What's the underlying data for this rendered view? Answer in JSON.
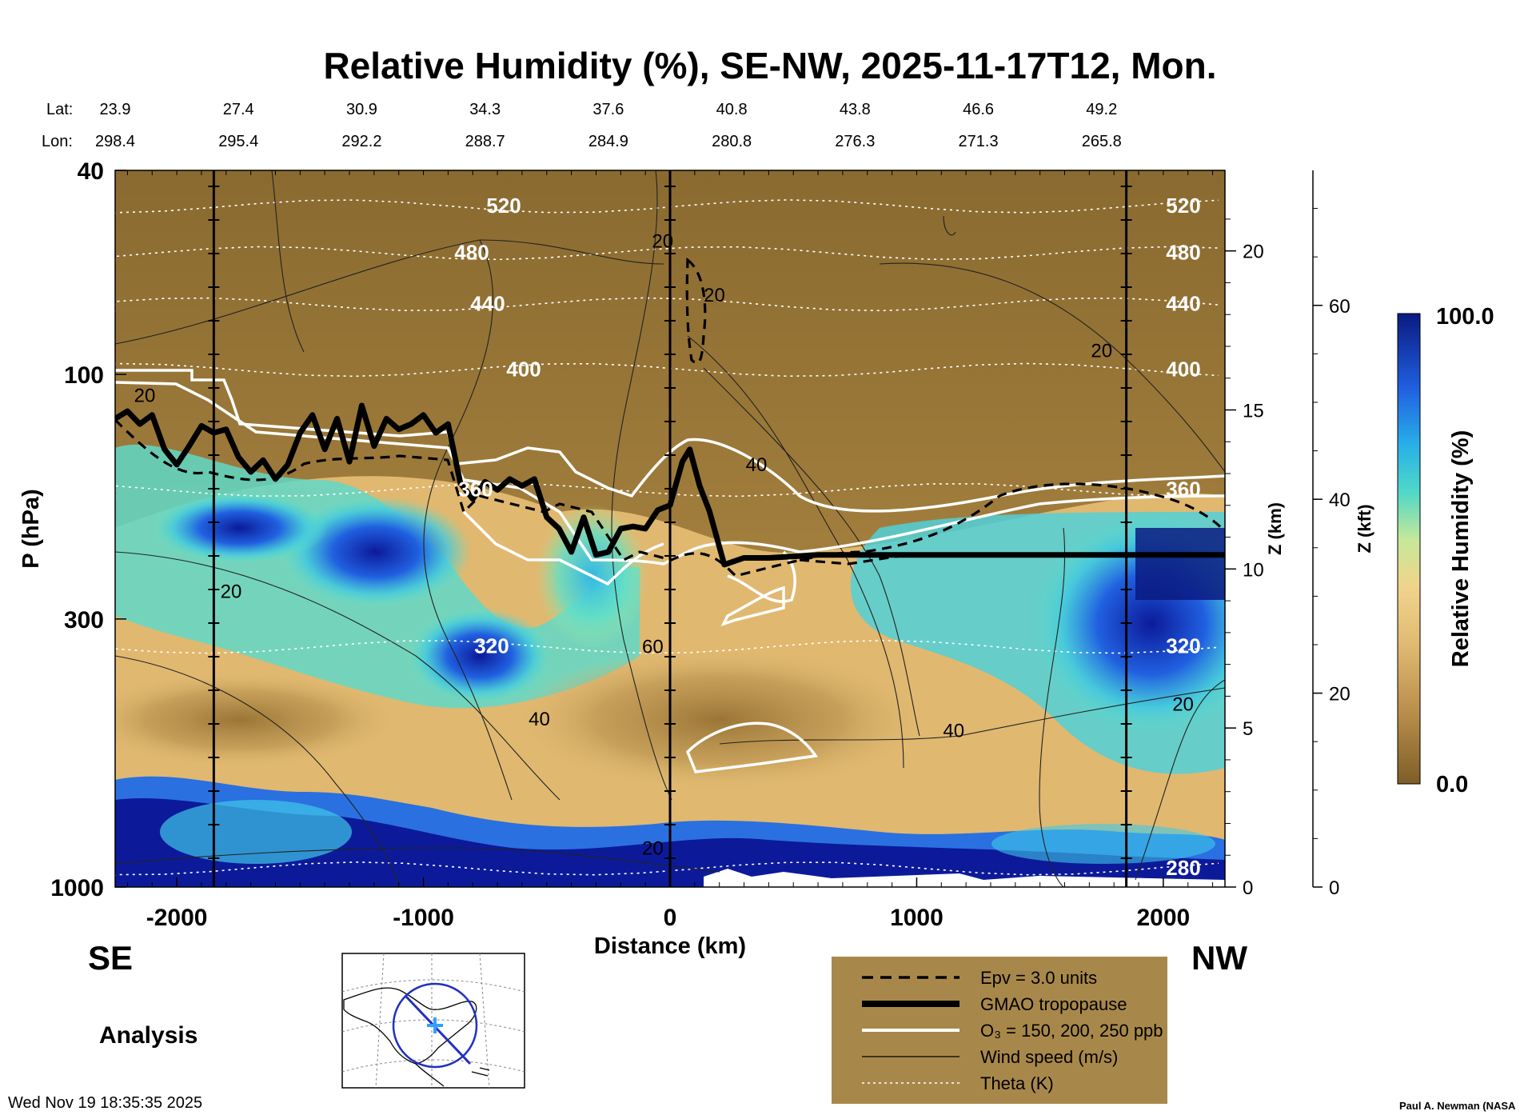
{
  "chart_data": {
    "type": "heatmap",
    "title": "Relative Humidity (%), SE-NW, 2025-11-17T12, Mon.",
    "xlabel": "Distance (km)",
    "ylabel": "P (hPa)",
    "right_axis_1_label": "Z (km)",
    "right_axis_2_label": "Z (kft)",
    "colorbar_label": "Relative Humidity (%)",
    "colorbar_max": "100.0",
    "colorbar_min": "0.0",
    "xlim": [
      -2250,
      2250
    ],
    "ylim": [
      1000,
      40
    ],
    "x_ticks": [
      "-2000",
      "-1000",
      "0",
      "1000",
      "2000"
    ],
    "x_tick_values": [
      -2000,
      -1000,
      0,
      1000,
      2000
    ],
    "y_ticks": [
      "40",
      "100",
      "300",
      "1000"
    ],
    "y_tick_values": [
      40,
      100,
      300,
      1000
    ],
    "z_km_ticks": [
      "0",
      "5",
      "10",
      "15",
      "20"
    ],
    "z_km_values": [
      0,
      5,
      10,
      15,
      20
    ],
    "z_kft_ticks": [
      "0",
      "20",
      "40",
      "60"
    ],
    "z_kft_values": [
      0,
      20,
      40,
      60
    ],
    "lat_label": "Lat:",
    "lon_label": "Lon:",
    "lat_values": [
      "23.9",
      "27.4",
      "30.9",
      "34.3",
      "37.6",
      "40.8",
      "43.8",
      "46.6",
      "49.2"
    ],
    "lon_values": [
      "298.4",
      "295.4",
      "292.2",
      "288.7",
      "284.9",
      "280.8",
      "276.3",
      "271.3",
      "265.8"
    ],
    "coord_positions_km": [
      -2250,
      -1750,
      -1250,
      -750,
      -250,
      250,
      750,
      1250,
      1750
    ],
    "vertical_line_km": [
      -1850,
      0,
      1850
    ],
    "tropopause": {
      "x": [
        -2250,
        -2200,
        -2150,
        -2100,
        -2050,
        -2000,
        -1950,
        -1900,
        -1850,
        -1800,
        -1750,
        -1700,
        -1650,
        -1600,
        -1550,
        -1500,
        -1450,
        -1400,
        -1350,
        -1300,
        -1250,
        -1200,
        -1150,
        -1100,
        -1050,
        -1000,
        -950,
        -900,
        -850,
        -800,
        -750,
        -700,
        -650,
        -600,
        -550,
        -500,
        -450,
        -400,
        -350,
        -300,
        -250,
        -200,
        -150,
        -100,
        -50,
        0,
        50,
        80,
        120,
        160,
        220,
        300,
        400,
        600,
        1000,
        1500,
        2250
      ],
      "p": [
        122,
        118,
        125,
        120,
        140,
        150,
        138,
        126,
        130,
        128,
        145,
        155,
        147,
        160,
        150,
        130,
        120,
        140,
        122,
        148,
        115,
        138,
        122,
        128,
        125,
        120,
        130,
        125,
        163,
        175,
        162,
        168,
        160,
        165,
        160,
        190,
        200,
        222,
        190,
        225,
        222,
        200,
        198,
        200,
        184,
        180,
        148,
        140,
        165,
        185,
        235,
        228,
        228,
        225,
        225,
        225,
        225
      ]
    },
    "theta_levels": [
      {
        "label": "520",
        "p": 47
      },
      {
        "label": "480",
        "p": 58
      },
      {
        "label": "440",
        "p": 73
      },
      {
        "label": "400",
        "p": 98
      },
      {
        "label": "360",
        "p": 168
      },
      {
        "label": "320",
        "p": 340
      },
      {
        "label": "280",
        "p": 920
      }
    ],
    "wind_labels": [
      {
        "label": "20",
        "x": -2130,
        "p": 110
      },
      {
        "label": "20",
        "x": -1780,
        "p": 265
      },
      {
        "label": "40",
        "x": -530,
        "p": 470
      },
      {
        "label": "60",
        "x": -70,
        "p": 340
      },
      {
        "label": "20",
        "x": -70,
        "p": 840
      },
      {
        "label": "20",
        "x": -30,
        "p": 55
      },
      {
        "label": "20",
        "x": 180,
        "p": 70
      },
      {
        "label": "40",
        "x": 350,
        "p": 150
      },
      {
        "label": "40",
        "x": 1150,
        "p": 495
      },
      {
        "label": "20",
        "x": 1750,
        "p": 90
      },
      {
        "label": "20",
        "x": 2080,
        "p": 440
      }
    ],
    "legend": [
      {
        "label": "Epv = 3.0 units",
        "style": "dashed"
      },
      {
        "label": "GMAO tropopause",
        "style": "thick"
      },
      {
        "label": "O₃ = 150, 200, 250 ppb",
        "style": "white"
      },
      {
        "label": "Wind speed (m/s)",
        "style": "thin"
      },
      {
        "label": "Theta (K)",
        "style": "dotted"
      }
    ],
    "colors": {
      "rh_dry": "#8a6a30",
      "rh_mid": "#e0b870",
      "rh_wet_mid": "#40d0d8",
      "rh_wet": "#0a1a90",
      "legend_bg": "#a8884a"
    }
  },
  "labels": {
    "se": "SE",
    "nw": "NW",
    "analysis": "Analysis",
    "timestamp": "Wed Nov 19 18:35:35 2025",
    "credit": "Paul A. Newman (NASA"
  }
}
